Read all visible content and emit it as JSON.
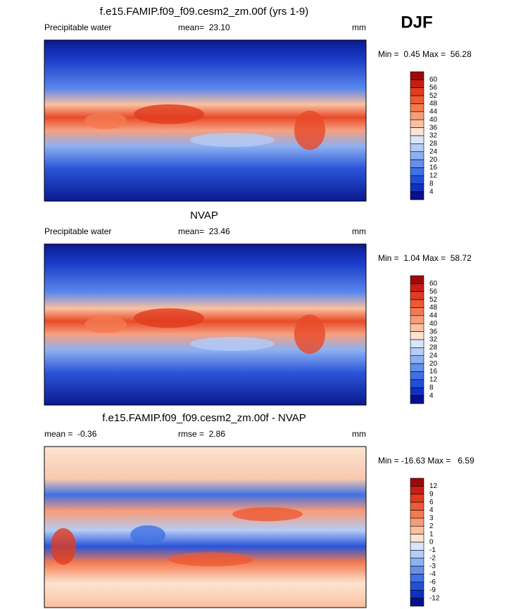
{
  "season": "DJF",
  "panels": [
    {
      "title": "f.e15.FAMIP.f09_f09.cesm2_zm.00f (yrs 1-9)",
      "left": "Precipitable water",
      "center": "mean=  23.10",
      "units": "mm",
      "minmax": "Min =  0.45 Max =  56.28",
      "levels": [
        60,
        56,
        52,
        48,
        44,
        40,
        36,
        32,
        28,
        24,
        20,
        16,
        12,
        8,
        4
      ],
      "colors": [
        "#9c0a0a",
        "#c81e14",
        "#e03c1e",
        "#ee5a32",
        "#f47a50",
        "#f89c78",
        "#fac0a0",
        "#fde4d0",
        "#d8e6fa",
        "#b4ccf6",
        "#8cb0f2",
        "#6690ec",
        "#4070e4",
        "#2050d8",
        "#1030c0",
        "#08108c"
      ]
    },
    {
      "title": "NVAP",
      "left": "Precipitable water",
      "center": "mean=  23.46",
      "units": "mm",
      "minmax": "Min =  1.04 Max =  58.72",
      "levels": [
        60,
        56,
        52,
        48,
        44,
        40,
        36,
        32,
        28,
        24,
        20,
        16,
        12,
        8,
        4
      ],
      "colors": [
        "#9c0a0a",
        "#c81e14",
        "#e03c1e",
        "#ee5a32",
        "#f47a50",
        "#f89c78",
        "#fac0a0",
        "#fde4d0",
        "#d8e6fa",
        "#b4ccf6",
        "#8cb0f2",
        "#6690ec",
        "#4070e4",
        "#2050d8",
        "#1030c0",
        "#08108c"
      ]
    },
    {
      "title": "f.e15.FAMIP.f09_f09.cesm2_zm.00f - NVAP",
      "left": "mean =  -0.36",
      "center": "rmse =  2.86",
      "units": "mm",
      "minmax": "Min = -16.63 Max =   6.59",
      "levels": [
        12,
        9,
        6,
        4,
        3,
        2,
        1,
        0,
        -1,
        -2,
        -3,
        -4,
        -6,
        -9,
        -12
      ],
      "colors": [
        "#9c0a0a",
        "#c81e14",
        "#e03c1e",
        "#ee5a32",
        "#f47a50",
        "#f89c78",
        "#fac0a0",
        "#fde4d0",
        "#d8e6fa",
        "#b4ccf6",
        "#8cb0f2",
        "#6690ec",
        "#4070e4",
        "#2050d8",
        "#1030c0",
        "#08108c"
      ]
    }
  ]
}
